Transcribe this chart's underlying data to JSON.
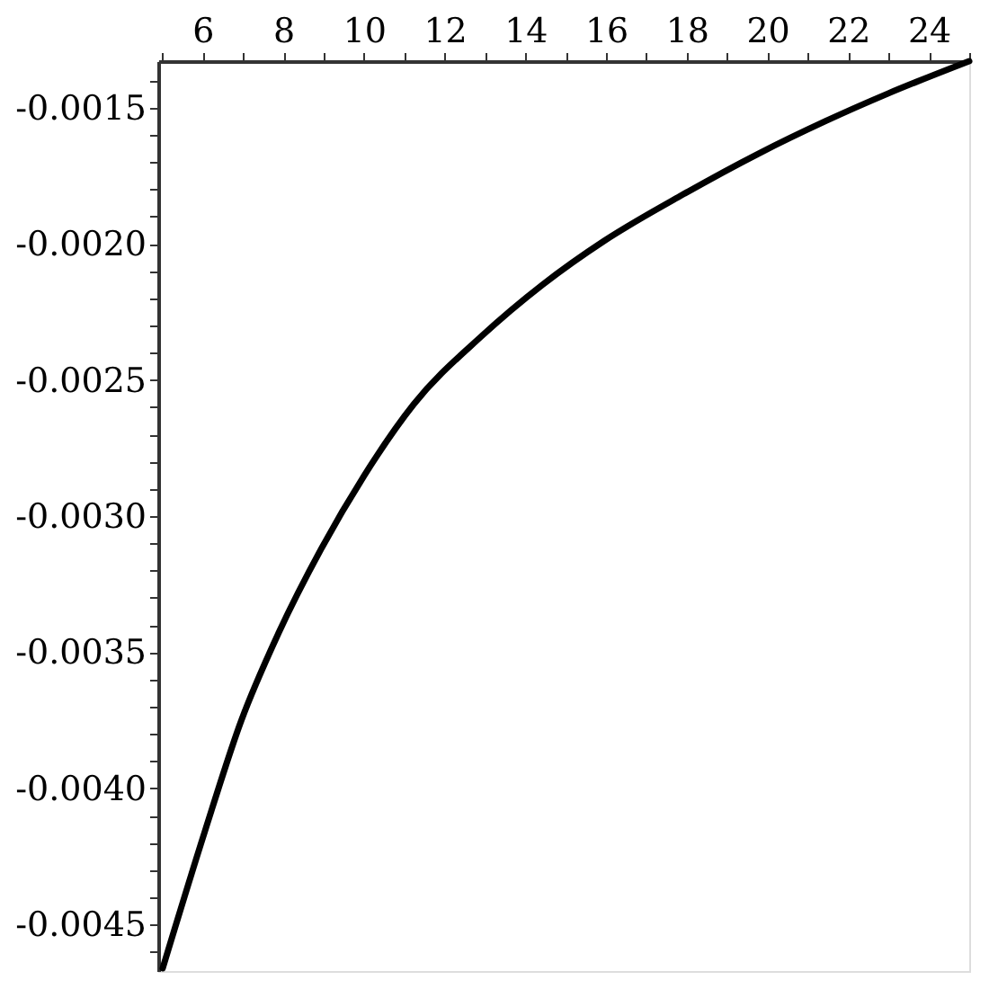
{
  "chart_data": {
    "type": "line",
    "x": [
      5.01,
      6.05,
      6.96,
      7.88,
      8.94,
      10.01,
      11.23,
      12.91,
      14.43,
      15.95,
      17.78,
      19.77,
      21.44,
      22.97,
      25.0
    ],
    "series": [
      {
        "color": "#000000",
        "values": [
          -0.00466,
          -0.00416,
          -0.00375,
          -0.00343,
          -0.00312,
          -0.00285,
          -0.00259,
          -0.00234,
          -0.00215,
          -0.00199,
          -0.00183,
          -0.00167,
          -0.00155,
          -0.00145,
          -0.00133
        ]
      }
    ],
    "xlim": [
      4.9,
      25.0
    ],
    "xticks": [
      {
        "value": 5,
        "label": null
      },
      6,
      {
        "value": 7,
        "label": null
      },
      8,
      {
        "value": 9,
        "label": null
      },
      10,
      {
        "value": 11,
        "label": null
      },
      12,
      {
        "value": 13,
        "label": null
      },
      14,
      {
        "value": 15,
        "label": null
      },
      16,
      {
        "value": 17,
        "label": null
      },
      18,
      {
        "value": 19,
        "label": null
      },
      20,
      {
        "value": 21,
        "label": null
      },
      22,
      {
        "value": 23,
        "label": null
      },
      24,
      {
        "value": 25,
        "label": null
      }
    ],
    "ylim": [
      -0.00467,
      -0.00133
    ],
    "yticks": [
      {
        "value": -0.0046,
        "label": null
      },
      -0.0045,
      {
        "value": -0.0044,
        "label": null
      },
      {
        "value": -0.0043,
        "label": null
      },
      {
        "value": -0.0042,
        "label": null
      },
      {
        "value": -0.0041,
        "label": null
      },
      {
        "value": -0.004,
        "label": "-0.0040"
      },
      {
        "value": -0.0039,
        "label": null
      },
      {
        "value": -0.0038,
        "label": null
      },
      {
        "value": -0.0037,
        "label": null
      },
      {
        "value": -0.0036,
        "label": null
      },
      -0.0035,
      {
        "value": -0.0034,
        "label": null
      },
      {
        "value": -0.0033,
        "label": null
      },
      {
        "value": -0.0032,
        "label": null
      },
      {
        "value": -0.0031,
        "label": null
      },
      {
        "value": -0.003,
        "label": "-0.0030"
      },
      {
        "value": -0.0029,
        "label": null
      },
      {
        "value": -0.0028,
        "label": null
      },
      {
        "value": -0.0027,
        "label": null
      },
      {
        "value": -0.0026,
        "label": null
      },
      -0.0025,
      {
        "value": -0.0024,
        "label": null
      },
      {
        "value": -0.0023,
        "label": null
      },
      {
        "value": -0.0022,
        "label": null
      },
      {
        "value": -0.0021,
        "label": null
      },
      {
        "value": -0.002,
        "label": "-0.0020"
      },
      {
        "value": -0.0019,
        "label": null
      },
      {
        "value": -0.0018,
        "label": null
      },
      {
        "value": -0.0017,
        "label": null
      },
      {
        "value": -0.0016,
        "label": null
      },
      -0.0015,
      {
        "value": -0.0014,
        "label": null
      }
    ],
    "grid": false,
    "marker": "none",
    "line_style": "solid"
  }
}
